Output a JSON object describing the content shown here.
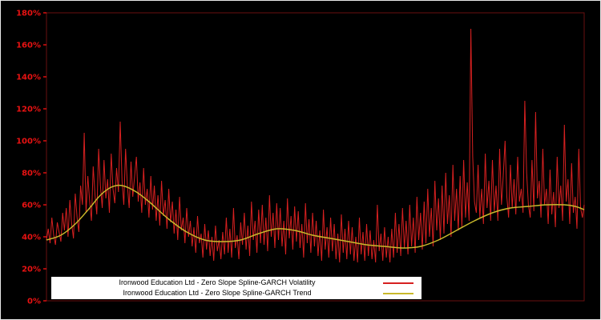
{
  "figure": {
    "background": "#000000",
    "border_color": "#e8e8e8"
  },
  "colors": {
    "volatility": "#d62020",
    "trend": "#c9b92b",
    "tick_label": "#e81212",
    "spine": "#6a1111",
    "legend_bg": "#ffffff",
    "legend_text": "#000000"
  },
  "y_axis": {
    "ticks": [
      "0%",
      "20%",
      "40%",
      "60%",
      "80%",
      "100%",
      "120%",
      "140%",
      "160%",
      "180%"
    ],
    "tick_values": [
      0,
      20,
      40,
      60,
      80,
      100,
      120,
      140,
      160,
      180
    ],
    "min": 0,
    "max": 180
  },
  "x_axis": {
    "ticks": [],
    "label": ""
  },
  "legend": {
    "items": [
      {
        "label": "Ironwood Education Ltd - Zero Slope Spline-GARCH Volatility",
        "color_key": "volatility"
      },
      {
        "label": "Ironwood Education Ltd - Zero Slope Spline-GARCH Trend",
        "color_key": "trend"
      }
    ]
  },
  "chart_data": {
    "type": "line",
    "title": "",
    "xlabel": "",
    "ylabel": "",
    "unit": "percent",
    "ylim": [
      0,
      180
    ],
    "grid": false,
    "legend_position": "bottom-center",
    "series": [
      {
        "name": "Ironwood Education Ltd - Zero Slope Spline-GARCH Volatility",
        "style": "jagged",
        "color": "#d62020",
        "values": [
          38,
          45,
          36,
          52,
          41,
          35,
          49,
          43,
          37,
          55,
          44,
          58,
          40,
          63,
          48,
          39,
          67,
          52,
          43,
          72,
          60,
          105,
          55,
          78,
          62,
          50,
          84,
          66,
          54,
          95,
          72,
          58,
          88,
          64,
          76,
          55,
          92,
          70,
          61,
          83,
          68,
          112,
          75,
          60,
          95,
          72,
          58,
          87,
          65,
          78,
          90,
          62,
          74,
          55,
          83,
          60,
          70,
          52,
          78,
          57,
          72,
          50,
          66,
          47,
          75,
          53,
          63,
          45,
          70,
          49,
          62,
          42,
          57,
          38,
          65,
          44,
          52,
          36,
          58,
          40,
          50,
          34,
          46,
          30,
          53,
          36,
          42,
          27,
          48,
          32,
          44,
          28,
          40,
          25,
          47,
          31,
          38,
          26,
          43,
          29,
          52,
          30,
          45,
          27,
          58,
          33,
          41,
          26,
          49,
          35,
          55,
          32,
          47,
          28,
          62,
          38,
          50,
          30,
          57,
          36,
          60,
          35,
          52,
          31,
          66,
          40,
          55,
          33,
          61,
          38,
          58,
          34,
          50,
          29,
          64,
          39,
          53,
          32,
          59,
          37,
          56,
          33,
          48,
          27,
          61,
          36,
          51,
          30,
          55,
          34,
          50,
          28,
          44,
          25,
          57,
          32,
          46,
          27,
          52,
          31,
          48,
          26,
          42,
          24,
          54,
          30,
          45,
          26,
          50,
          29,
          46,
          25,
          40,
          24,
          52,
          29,
          43,
          25,
          48,
          28,
          44,
          26,
          38,
          24,
          60,
          31,
          42,
          25,
          46,
          27,
          40,
          24,
          45,
          27,
          55,
          30,
          48,
          28,
          58,
          33,
          50,
          29,
          60,
          34,
          52,
          30,
          65,
          38,
          55,
          32,
          62,
          36,
          70,
          40,
          58,
          34,
          75,
          44,
          64,
          38,
          72,
          42,
          80,
          48,
          66,
          40,
          85,
          50,
          70,
          44,
          78,
          46,
          88,
          52,
          74,
          50,
          170,
          90,
          62,
          55,
          85,
          52,
          70,
          48,
          92,
          58,
          75,
          50,
          88,
          56,
          72,
          50,
          95,
          60,
          78,
          100,
          65,
          52,
          85,
          58,
          76,
          54,
          90,
          62,
          70,
          55,
          125,
          80,
          60,
          52,
          88,
          56,
          118,
          64,
          75,
          52,
          95,
          60,
          70,
          48,
          82,
          54,
          68,
          46,
          90,
          58,
          72,
          50,
          110,
          62,
          76,
          48,
          86,
          55,
          65,
          45,
          95,
          58,
          52,
          60
        ]
      },
      {
        "name": "Ironwood Education Ltd - Zero Slope Spline-GARCH Trend",
        "style": "smooth",
        "color": "#c9b92b",
        "points": {
          "i": [
            0,
            8,
            16,
            24,
            30,
            36,
            42,
            50,
            58,
            68,
            78,
            88,
            98,
            108,
            118,
            128,
            138,
            148,
            158,
            168,
            178,
            188,
            198,
            208,
            218,
            228,
            238,
            248,
            258,
            268,
            278,
            288,
            294,
            299
          ],
          "v": [
            38,
            41,
            48,
            58,
            66,
            71,
            72,
            68,
            61,
            51,
            43,
            38,
            37,
            38,
            42,
            45,
            44,
            41,
            39,
            37,
            35,
            34,
            33,
            34,
            38,
            44,
            50,
            55,
            58,
            59,
            60,
            60,
            59,
            57
          ]
        }
      }
    ]
  }
}
